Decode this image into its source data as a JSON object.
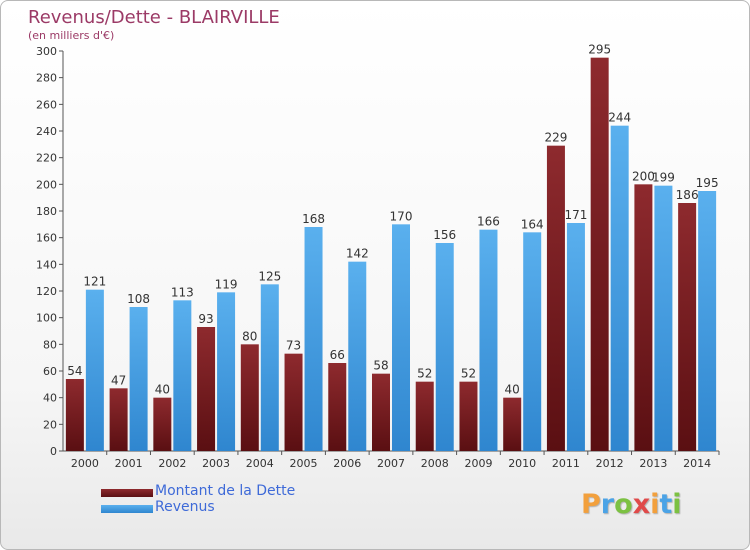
{
  "header": {
    "title": "Revenus/Dette - BLAIRVILLE",
    "subtitle": "(en milliers d'€)"
  },
  "colors": {
    "dette": "#7a1f22",
    "revenus": "#4ba3e6",
    "title": "#9b3a66",
    "legend_text": "#3e6ad8"
  },
  "logo": {
    "text": "Proxiti",
    "colors": [
      "#f2a03d",
      "#4ba3e6",
      "#7cc142",
      "#e04a4a",
      "#f2a03d",
      "#4ba3e6",
      "#7cc142"
    ]
  },
  "chart_data": {
    "type": "bar",
    "categories": [
      "2000",
      "2001",
      "2002",
      "2003",
      "2004",
      "2005",
      "2006",
      "2007",
      "2008",
      "2009",
      "2010",
      "2011",
      "2012",
      "2013",
      "2014"
    ],
    "series": [
      {
        "name": "Montant de la Dette",
        "values": [
          54,
          47,
          40,
          93,
          80,
          73,
          66,
          58,
          52,
          52,
          40,
          229,
          295,
          200,
          186
        ]
      },
      {
        "name": "Revenus",
        "values": [
          121,
          108,
          113,
          119,
          125,
          168,
          142,
          170,
          156,
          166,
          164,
          171,
          244,
          199,
          195
        ]
      }
    ],
    "ylim": [
      0,
      300
    ],
    "yticks": [
      0,
      20,
      40,
      60,
      80,
      100,
      120,
      140,
      160,
      180,
      200,
      220,
      240,
      260,
      280,
      300
    ],
    "grid": false,
    "legend": "bottom-left"
  }
}
